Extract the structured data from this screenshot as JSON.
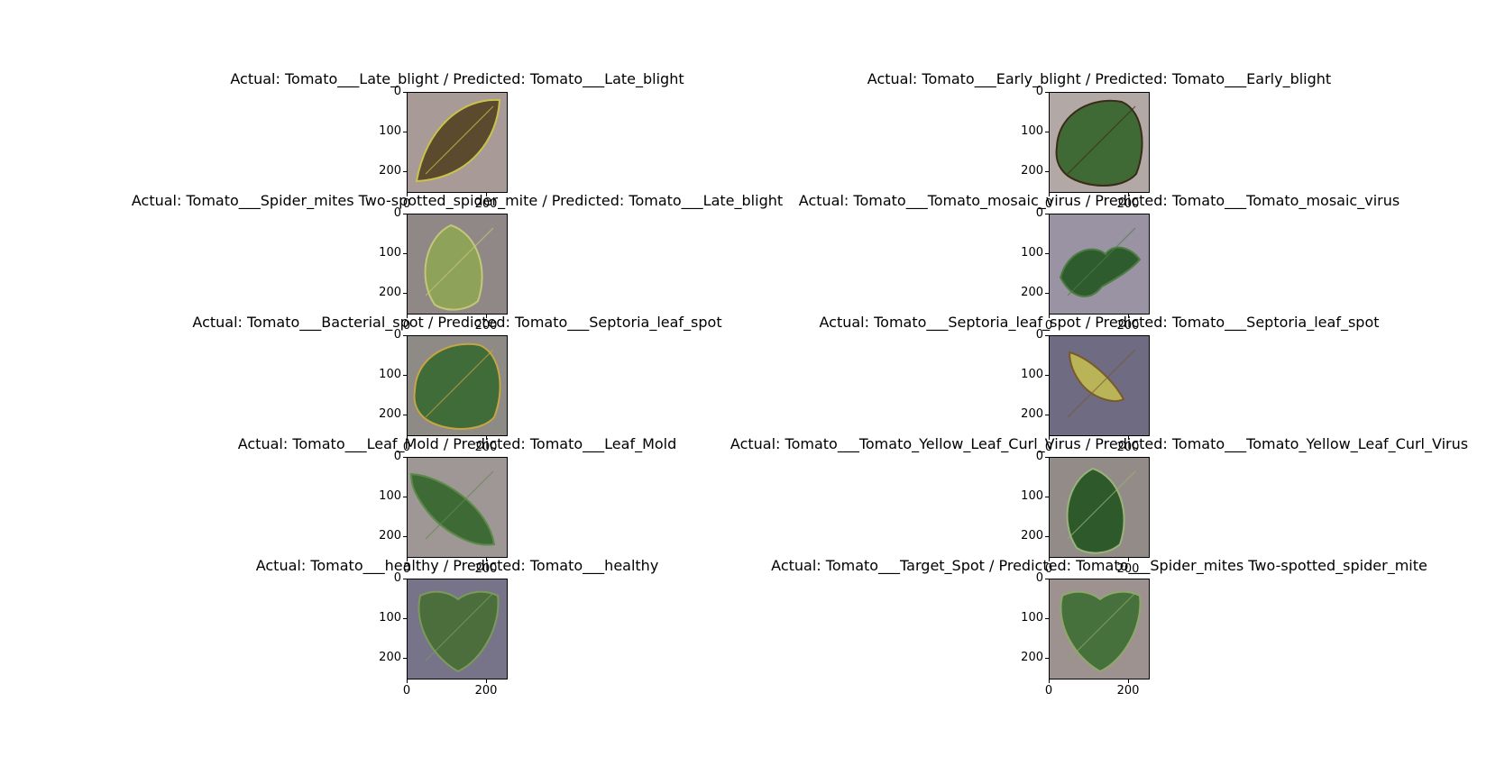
{
  "figure": {
    "panels": [
      {
        "title": "Actual: Tomato___Late_blight / Predicted: Tomato___Late_blight",
        "bg": "#a89a97",
        "leaf": "#5b4a2e",
        "accent": "#c9c34a",
        "shape": "wide"
      },
      {
        "title": "Actual: Tomato___Early_blight / Predicted: Tomato___Early_blight",
        "bg": "#b2a9a7",
        "leaf": "#3f6a36",
        "accent": "#3a2a17",
        "shape": "big"
      },
      {
        "title": "Actual: Tomato___Spider_mites Two-spotted_spider_mite / Predicted: Tomato___Late_blight",
        "bg": "#8f8887",
        "leaf": "#8ea25a",
        "accent": "#c4c77a",
        "shape": "oval"
      },
      {
        "title": "Actual: Tomato___Tomato_mosaic_virus / Predicted: Tomato___Tomato_mosaic_virus",
        "bg": "#9a93a4",
        "leaf": "#2f5c2e",
        "accent": "#4f7d43",
        "shape": "lobed"
      },
      {
        "title": "Actual: Tomato___Bacterial_spot / Predicted: Tomato___Septoria_leaf_spot",
        "bg": "#8e8a86",
        "leaf": "#3f6c38",
        "accent": "#c7a444",
        "shape": "big"
      },
      {
        "title": "Actual: Tomato___Septoria_leaf_spot / Predicted: Tomato___Septoria_leaf_spot",
        "bg": "#6f6b82",
        "leaf": "#b8b457",
        "accent": "#7a5a2c",
        "shape": "small"
      },
      {
        "title": "Actual: Tomato___Leaf_Mold / Predicted: Tomato___Leaf_Mold",
        "bg": "#9f9795",
        "leaf": "#3e6b35",
        "accent": "#5c8a48",
        "shape": "long"
      },
      {
        "title": "Actual: Tomato___Tomato_Yellow_Leaf_Curl_Virus / Predicted: Tomato___Tomato_Yellow_Leaf_Curl_Virus",
        "bg": "#928b88",
        "leaf": "#2e5a2b",
        "accent": "#9bb27a",
        "shape": "oval"
      },
      {
        "title": "Actual: Tomato___healthy / Predicted: Tomato___healthy",
        "bg": "#777389",
        "leaf": "#4c6e3c",
        "accent": "#7b9a5c",
        "shape": "heart"
      },
      {
        "title": "Actual: Tomato___Target_Spot / Predicted: Tomato___Spider_mites Two-spotted_spider_mite",
        "bg": "#9d9290",
        "leaf": "#46703c",
        "accent": "#8fa86a",
        "shape": "heart"
      }
    ],
    "y_ticks": [
      "0",
      "100",
      "200"
    ],
    "x_ticks": [
      "0",
      "200"
    ]
  }
}
